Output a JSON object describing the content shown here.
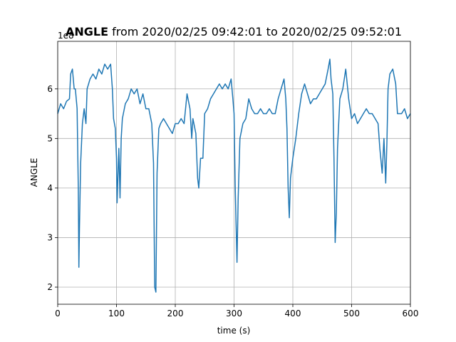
{
  "chart_data": {
    "type": "line",
    "title_bold": "ANGLE",
    "title": "from 2020/02/25 09:42:01 to 2020/02/25 09:52:01",
    "x_label": "time (s)",
    "y_label": "ANGLE",
    "y_offset_label": "1e8",
    "color": "#1f77b4",
    "grid": true,
    "xlim": [
      0,
      600
    ],
    "xticks": [
      0,
      100,
      200,
      300,
      400,
      500,
      600
    ],
    "ylim": [
      1.655,
      6.96
    ],
    "yticks": [
      2,
      3,
      4,
      5,
      6
    ],
    "x": [
      0,
      5,
      10,
      15,
      20,
      22,
      25,
      28,
      30,
      33,
      35,
      36,
      37,
      39,
      42,
      45,
      48,
      50,
      55,
      60,
      65,
      70,
      75,
      80,
      85,
      90,
      93,
      95,
      98,
      100,
      101,
      104,
      106,
      108,
      110,
      115,
      120,
      125,
      130,
      135,
      140,
      145,
      150,
      155,
      160,
      163,
      165,
      167,
      169,
      172,
      175,
      180,
      185,
      190,
      195,
      200,
      205,
      210,
      215,
      220,
      225,
      228,
      230,
      235,
      238,
      240,
      243,
      247,
      250,
      255,
      260,
      265,
      270,
      275,
      280,
      285,
      290,
      295,
      298,
      300,
      302,
      305,
      307,
      310,
      315,
      320,
      325,
      330,
      335,
      340,
      345,
      350,
      355,
      360,
      365,
      370,
      375,
      380,
      385,
      388,
      390,
      392,
      394,
      396,
      400,
      405,
      410,
      415,
      420,
      425,
      430,
      435,
      440,
      445,
      450,
      455,
      460,
      463,
      465,
      468,
      470,
      472,
      474,
      476,
      480,
      485,
      490,
      495,
      500,
      505,
      510,
      515,
      520,
      525,
      530,
      535,
      540,
      545,
      548,
      552,
      555,
      558,
      560,
      562,
      565,
      570,
      575,
      578,
      585,
      590,
      595,
      600
    ],
    "values": [
      5.5,
      5.7,
      5.6,
      5.75,
      5.8,
      6.3,
      6.4,
      6.0,
      6.0,
      5.6,
      4.0,
      2.4,
      3.2,
      4.5,
      5.3,
      5.6,
      5.3,
      6.0,
      6.2,
      6.3,
      6.2,
      6.4,
      6.3,
      6.5,
      6.4,
      6.5,
      6.0,
      5.4,
      5.2,
      4.6,
      3.7,
      4.8,
      3.8,
      5.0,
      5.4,
      5.7,
      5.8,
      6.0,
      5.9,
      6.0,
      5.7,
      5.9,
      5.6,
      5.6,
      5.3,
      4.5,
      2.0,
      1.9,
      4.3,
      5.2,
      5.3,
      5.4,
      5.3,
      5.2,
      5.1,
      5.3,
      5.3,
      5.4,
      5.3,
      5.9,
      5.6,
      5.0,
      5.4,
      5.1,
      4.2,
      4.0,
      4.6,
      4.6,
      5.5,
      5.6,
      5.8,
      5.9,
      6.0,
      6.1,
      6.0,
      6.1,
      6.0,
      6.2,
      5.8,
      5.5,
      4.0,
      2.5,
      3.8,
      5.0,
      5.3,
      5.4,
      5.8,
      5.6,
      5.5,
      5.5,
      5.6,
      5.5,
      5.5,
      5.6,
      5.5,
      5.5,
      5.8,
      6.0,
      6.2,
      5.8,
      5.2,
      4.0,
      3.4,
      4.2,
      4.6,
      5.0,
      5.5,
      5.9,
      6.1,
      5.9,
      5.7,
      5.8,
      5.8,
      5.9,
      6.0,
      6.1,
      6.4,
      6.6,
      6.2,
      5.9,
      4.6,
      2.9,
      3.5,
      4.8,
      5.8,
      6.0,
      6.4,
      5.8,
      5.4,
      5.5,
      5.3,
      5.4,
      5.5,
      5.6,
      5.5,
      5.5,
      5.4,
      5.3,
      4.8,
      4.3,
      5.0,
      4.1,
      4.9,
      6.0,
      6.3,
      6.4,
      6.1,
      5.5,
      5.5,
      5.6,
      5.4,
      5.5
    ]
  }
}
